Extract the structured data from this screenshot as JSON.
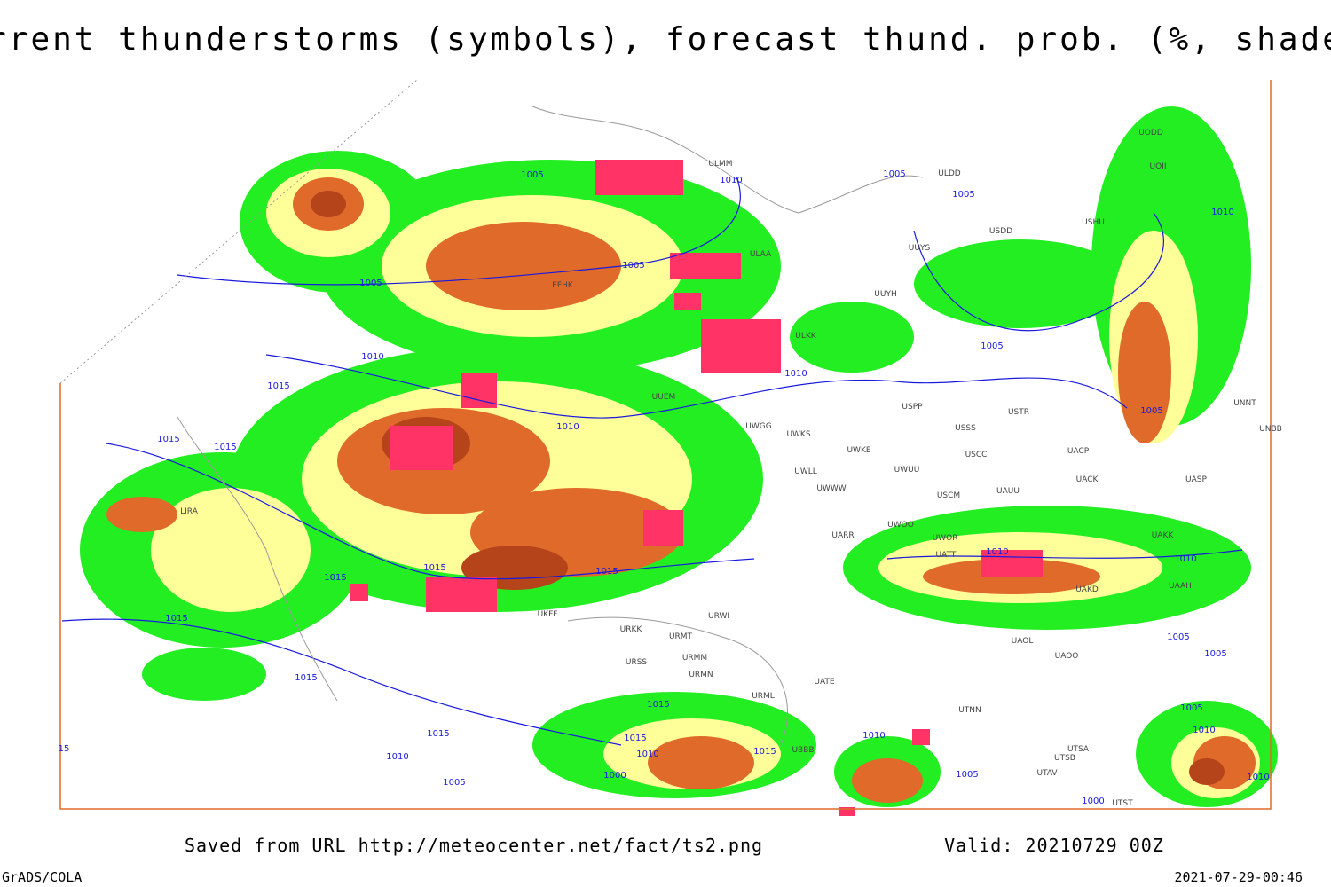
{
  "title": "Current thunderstorms (symbols), forecast thund. prob. (%, shaded)",
  "footer": {
    "source": "Saved from URL http://meteocenter.net/fact/ts2.png",
    "valid": "Valid: 20210729 00Z",
    "software": "GrADS/COLA",
    "timestamp": "2021-07-29-00:46"
  },
  "isobar_labels": [
    "1005",
    "1010",
    "1005",
    "1005",
    "1010",
    "1005",
    "1005",
    "1010",
    "1015",
    "1010",
    "1005",
    "1005",
    "1015",
    "1015",
    "1010",
    "1015",
    "1015",
    "1010",
    "1010",
    "1015",
    "1015",
    "1015",
    "1005",
    "1005",
    "1015",
    "1015",
    "1010",
    "1015",
    "1010",
    "1005",
    "1005",
    "1010",
    "1015",
    "1010",
    "1005",
    "1000",
    "1000",
    "1010",
    "15"
  ],
  "station_labels": [
    "UODD",
    "UOII",
    "ULDD",
    "USDD",
    "USHU",
    "ULMM",
    "ULAA",
    "UUYS",
    "UUYH",
    "ULKK",
    "UUEM",
    "UWGG",
    "UWKS",
    "UWKE",
    "USPP",
    "USSS",
    "USTR",
    "USCC",
    "UACP",
    "UACK",
    "UASP",
    "UAKK",
    "UAAH",
    "UAKD",
    "UAOO",
    "UATE",
    "URML",
    "UBBB",
    "UTNN",
    "UTSA",
    "UTSB",
    "UTAV",
    "UTST",
    "UNNT",
    "UNBB",
    "UWWW",
    "UWLL",
    "UWUU",
    "USCM",
    "UAUU",
    "UWOO",
    "UWOR",
    "UARR",
    "UATT",
    "UAOL",
    "URWI",
    "URMT",
    "URMM",
    "URMN",
    "URSS",
    "URKK",
    "UKFF",
    "EFHK",
    "LIRA"
  ]
}
